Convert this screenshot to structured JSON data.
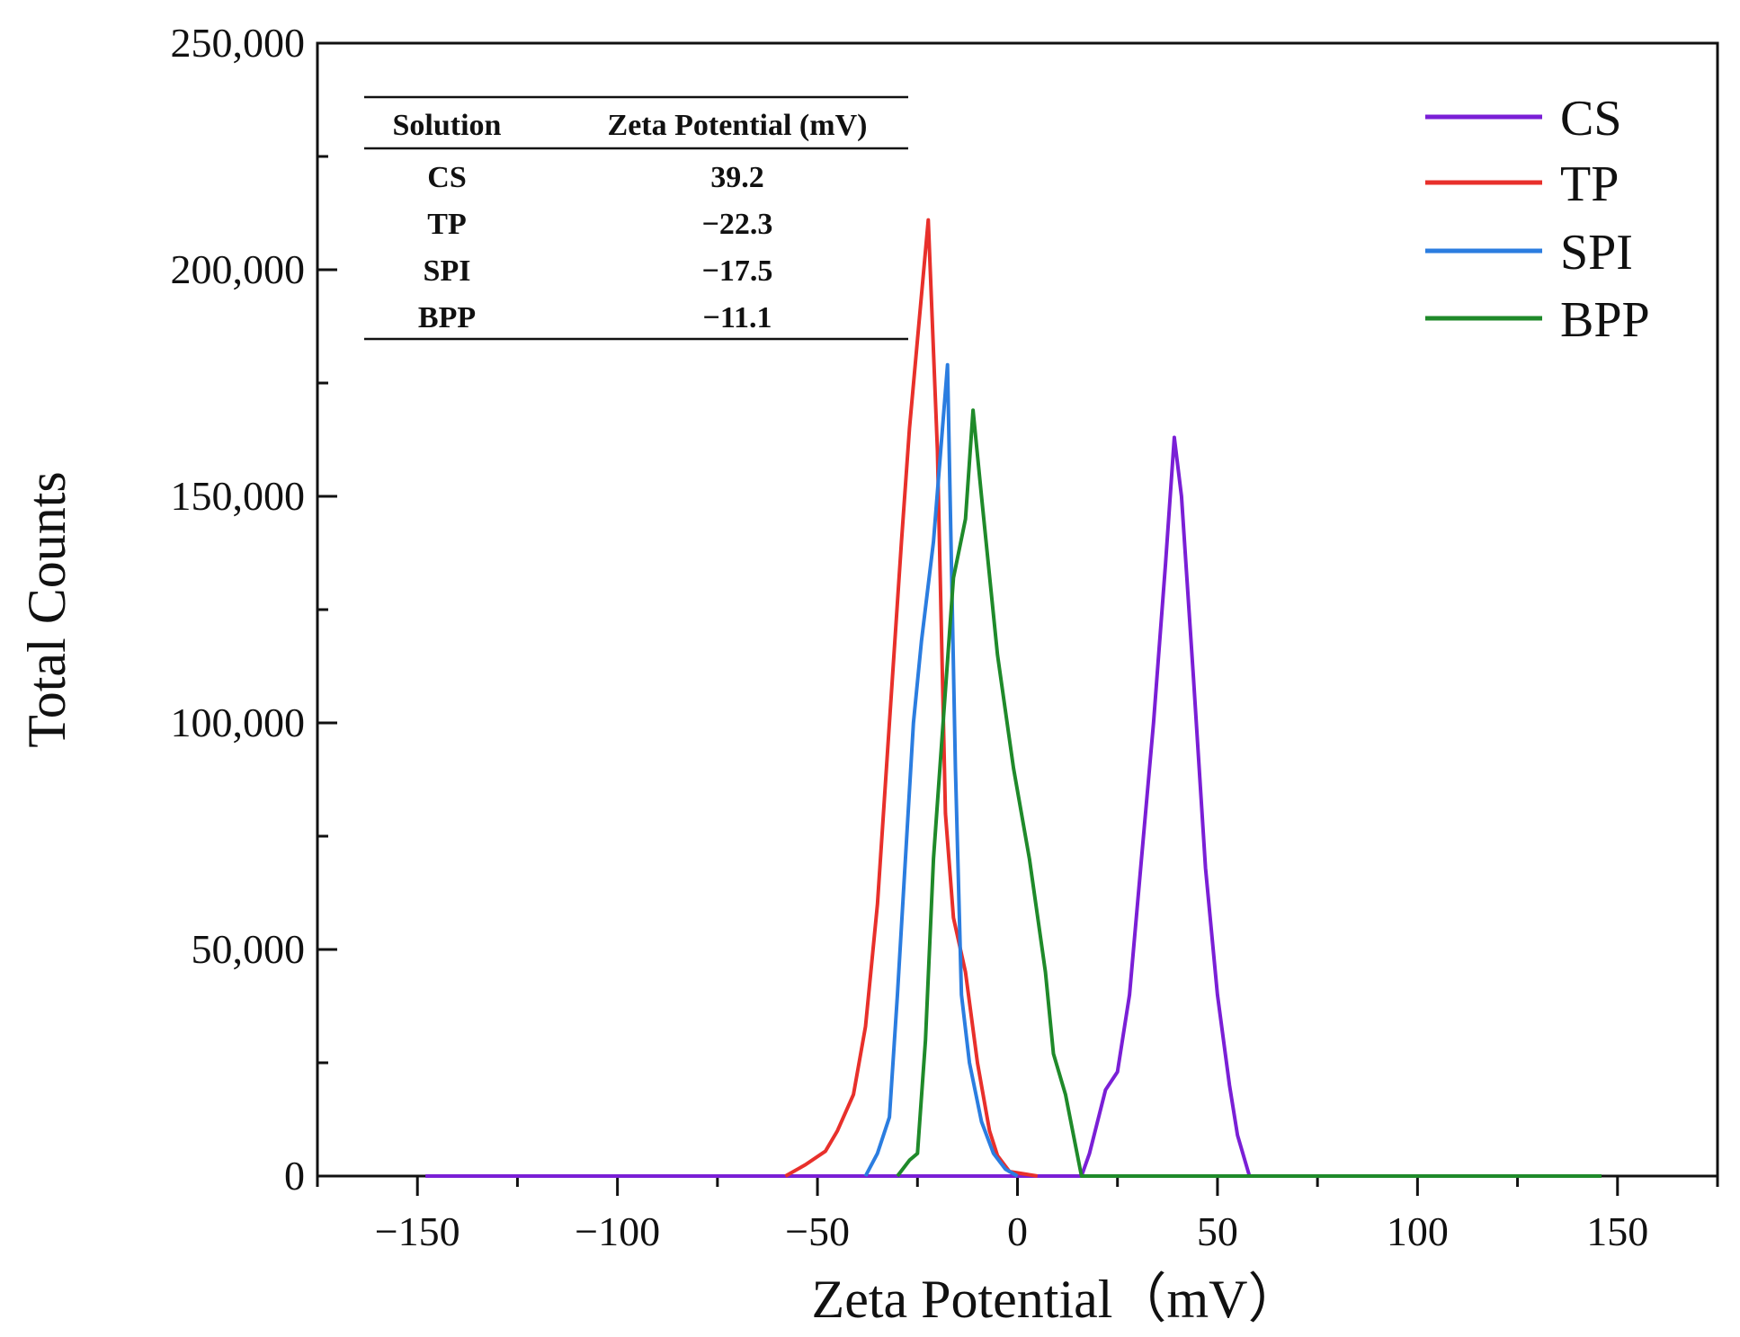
{
  "chart_data": {
    "type": "line",
    "title": "",
    "xlabel": "Zeta Potential（mV）",
    "ylabel": "Total Counts",
    "xlim": [
      -175,
      175
    ],
    "ylim": [
      0,
      250000
    ],
    "xticks": [
      -150,
      -100,
      -50,
      0,
      50,
      100,
      150
    ],
    "xtick_labels": [
      "−150",
      "−100",
      "−50",
      "0",
      "50",
      "100",
      "150"
    ],
    "yticks": [
      0,
      50000,
      100000,
      150000,
      200000,
      250000
    ],
    "ytick_labels": [
      "0",
      "50,000",
      "100,000",
      "150,000",
      "200,000",
      "250,000"
    ],
    "grid": false,
    "legend_position": "top-right",
    "series": [
      {
        "name": "CS",
        "color": "#7a1fd6",
        "points": [
          [
            -148,
            0
          ],
          [
            16,
            0
          ],
          [
            18,
            5000
          ],
          [
            22,
            19000
          ],
          [
            25,
            23000
          ],
          [
            28,
            40000
          ],
          [
            31,
            70000
          ],
          [
            34,
            100000
          ],
          [
            37,
            135000
          ],
          [
            39.2,
            163000
          ],
          [
            41,
            150000
          ],
          [
            44,
            110000
          ],
          [
            47,
            68000
          ],
          [
            50,
            40000
          ],
          [
            53,
            20000
          ],
          [
            55,
            9000
          ],
          [
            58,
            0
          ],
          [
            146,
            0
          ]
        ]
      },
      {
        "name": "TP",
        "color": "#e8302b",
        "points": [
          [
            -58,
            0
          ],
          [
            -53,
            2500
          ],
          [
            -48,
            5500
          ],
          [
            -45,
            10000
          ],
          [
            -41,
            18000
          ],
          [
            -38,
            33000
          ],
          [
            -35,
            60000
          ],
          [
            -32,
            100000
          ],
          [
            -29,
            140000
          ],
          [
            -27,
            165000
          ],
          [
            -22.3,
            211000
          ],
          [
            -20,
            160000
          ],
          [
            -18,
            80000
          ],
          [
            -16,
            57000
          ],
          [
            -13,
            45000
          ],
          [
            -10,
            25000
          ],
          [
            -7,
            10000
          ],
          [
            -5,
            4500
          ],
          [
            -2,
            1000
          ],
          [
            5,
            0
          ]
        ]
      },
      {
        "name": "SPI",
        "color": "#2b7de0",
        "points": [
          [
            -38,
            0
          ],
          [
            -35,
            5000
          ],
          [
            -32,
            13000
          ],
          [
            -30,
            40000
          ],
          [
            -28,
            70000
          ],
          [
            -26,
            100000
          ],
          [
            -24,
            118000
          ],
          [
            -21,
            140000
          ],
          [
            -17.5,
            179000
          ],
          [
            -15.5,
            90000
          ],
          [
            -14,
            40000
          ],
          [
            -12,
            25000
          ],
          [
            -9,
            12000
          ],
          [
            -6,
            5000
          ],
          [
            -3,
            1500
          ],
          [
            0,
            0
          ]
        ]
      },
      {
        "name": "BPP",
        "color": "#1f8a2a",
        "points": [
          [
            -30,
            0
          ],
          [
            -27,
            3500
          ],
          [
            -25,
            5000
          ],
          [
            -23,
            30000
          ],
          [
            -21,
            70000
          ],
          [
            -19,
            95000
          ],
          [
            -16,
            132000
          ],
          [
            -13,
            145000
          ],
          [
            -11.1,
            169000
          ],
          [
            -9,
            150000
          ],
          [
            -5,
            115000
          ],
          [
            -1,
            90000
          ],
          [
            3,
            70000
          ],
          [
            7,
            45000
          ],
          [
            9,
            27000
          ],
          [
            12,
            18000
          ],
          [
            16,
            0
          ],
          [
            146,
            0
          ]
        ]
      }
    ],
    "inset_table": {
      "headers": [
        "Solution",
        "Zeta Potential (mV)"
      ],
      "rows": [
        [
          "CS",
          "39.2"
        ],
        [
          "TP",
          "−22.3"
        ],
        [
          "SPI",
          "−17.5"
        ],
        [
          "BPP",
          "−11.1"
        ]
      ]
    }
  }
}
